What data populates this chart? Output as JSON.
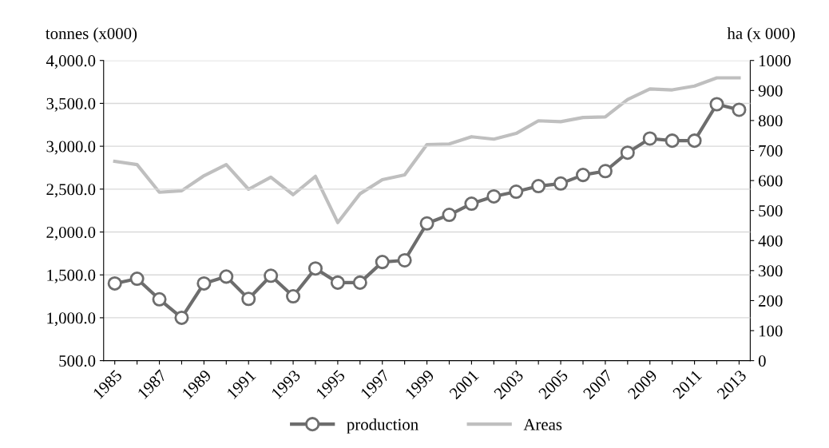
{
  "chart_data": {
    "type": "line",
    "ylabel": "tonnes (x000)",
    "y2label": "ha (x 000)",
    "categories": [
      "1985",
      null,
      "1987",
      null,
      "1989",
      null,
      "1991",
      null,
      "1993",
      null,
      "1995",
      null,
      "1997",
      null,
      "1999",
      null,
      "2001",
      null,
      "2003",
      null,
      "2005",
      null,
      "2007",
      null,
      "2009",
      null,
      "2011",
      null,
      "2013"
    ],
    "series": [
      {
        "name": "production",
        "color": "#6d6d6d",
        "marker": "circle",
        "values": [
          1400,
          1455,
          1215,
          1000,
          1400,
          1480,
          1220,
          1490,
          1250,
          1575,
          1410,
          1410,
          1650,
          1670,
          2100,
          2200,
          2330,
          2415,
          2470,
          2535,
          2565,
          2665,
          2710,
          2925,
          3090,
          3065,
          3065,
          3490,
          3425
        ]
      },
      {
        "name": "Areas",
        "color": "#bfbfbf",
        "axis": "y2",
        "values": [
          664,
          653,
          561,
          566,
          616,
          653,
          571,
          611,
          553,
          614,
          460,
          556,
          603,
          619,
          720,
          722,
          746,
          738,
          757,
          799,
          796,
          810,
          812,
          870,
          905,
          902,
          915,
          942,
          942
        ]
      }
    ],
    "ylim": [
      500,
      4000
    ],
    "yticks": [
      {
        "value": 500,
        "label": "500.0"
      },
      {
        "value": 1000,
        "label": "1,000.0"
      },
      {
        "value": 1500,
        "label": "1,500.0"
      },
      {
        "value": 2000,
        "label": "2,000.0"
      },
      {
        "value": 2500,
        "label": "2,500.0"
      },
      {
        "value": 3000,
        "label": "3,000.0"
      },
      {
        "value": 3500,
        "label": "3,500.0"
      },
      {
        "value": 4000,
        "label": "4,000.0"
      }
    ],
    "y2lim": [
      0,
      1000
    ],
    "y2ticks": [
      0,
      100,
      200,
      300,
      400,
      500,
      600,
      700,
      800,
      900,
      1000
    ],
    "grid": "y",
    "legend": "bottom"
  }
}
